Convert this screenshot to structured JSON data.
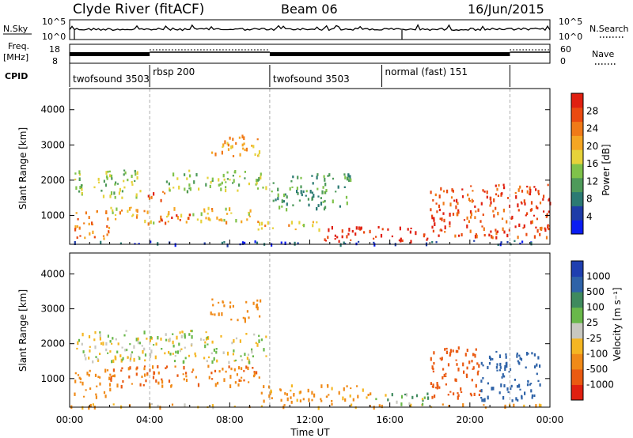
{
  "header": {
    "station": "Clyde River (fitACF)",
    "beam": "Beam 06",
    "date": "16/Jun/2015"
  },
  "strip1": {
    "left_label": "N.Sky",
    "right_label": "N.Search",
    "tick_top_left": "10^5",
    "tick_bottom_left": "10^0",
    "tick_top_right": "10^5",
    "tick_bottom_right": "10^0"
  },
  "strip2": {
    "left_label_1": "Freq.",
    "left_label_2": "[MHz]",
    "tick_top_left": "18",
    "tick_bottom_left": "8",
    "right_label": "Nave",
    "tick_top_right": "60",
    "tick_bottom_right": "0"
  },
  "cpid": {
    "label": "CPID",
    "modes": [
      {
        "name": "twofsound 3503",
        "start_hour": 0.0
      },
      {
        "name": "rbsp 200",
        "start_hour": 4.0
      },
      {
        "name": "twofsound 3503",
        "start_hour": 10.0
      },
      {
        "name": "normal (fast) 151",
        "start_hour": 15.6
      }
    ]
  },
  "power_colorbar": {
    "label": "Power [dB]",
    "ticks": [
      "4",
      "8",
      "12",
      "16",
      "20",
      "24",
      "28"
    ],
    "colors": [
      "#0a1cf2",
      "#1e3ca8",
      "#2b7a73",
      "#4e9a5a",
      "#7fc24a",
      "#e6d23a",
      "#f5a623",
      "#f07a18",
      "#ea4a10",
      "#e01f10"
    ]
  },
  "velocity_colorbar": {
    "label": "Velocity [m s⁻¹]",
    "ticks": [
      "1000",
      "500",
      "100",
      "25",
      "-25",
      "-100",
      "-500",
      "-1000"
    ],
    "colors": [
      "#1f3fb0",
      "#2f63a8",
      "#3f8a5e",
      "#69b84a",
      "#c8c8c0",
      "#f5b622",
      "#f08a18",
      "#ea5a12",
      "#e02010"
    ]
  },
  "chart_data": [
    {
      "type": "heatmap",
      "title": "",
      "xlabel": "",
      "ylabel": "Slant Range [km]",
      "value_label": "Power [dB]",
      "xlim": [
        0,
        24
      ],
      "ylim": [
        180,
        4600
      ],
      "xticks": [
        "00:00",
        "04:00",
        "08:00",
        "12:00",
        "16:00",
        "20:00",
        "00:00"
      ],
      "yticks": [
        "1000",
        "2000",
        "3000",
        "4000"
      ],
      "bands": [
        {
          "x0": 0,
          "x1": 24,
          "y0": 200,
          "y1": 300,
          "value": 4
        },
        {
          "x0": 0.2,
          "x1": 3.6,
          "y0": 1500,
          "y1": 2300,
          "value": 14
        },
        {
          "x0": 3.6,
          "x1": 4.8,
          "y0": 1450,
          "y1": 1750,
          "value": 24
        },
        {
          "x0": 4.8,
          "x1": 9.8,
          "y0": 1700,
          "y1": 2300,
          "value": 14
        },
        {
          "x0": 0.2,
          "x1": 2.0,
          "y0": 330,
          "y1": 1150,
          "value": 22
        },
        {
          "x0": 2.0,
          "x1": 9.0,
          "y0": 800,
          "y1": 1250,
          "value": 18
        },
        {
          "x0": 4.0,
          "x1": 6.0,
          "y0": 800,
          "y1": 1050,
          "value": 26
        },
        {
          "x0": 9.0,
          "x1": 12.5,
          "y0": 600,
          "y1": 850,
          "value": 18
        },
        {
          "x0": 12.5,
          "x1": 18.0,
          "y0": 300,
          "y1": 700,
          "value": 28
        },
        {
          "x0": 18.0,
          "x1": 24,
          "y0": 400,
          "y1": 1900,
          "value": 26
        },
        {
          "x0": 7.0,
          "x1": 9.5,
          "y0": 2700,
          "y1": 3300,
          "value": 20
        },
        {
          "x0": 10.0,
          "x1": 14.0,
          "y0": 1200,
          "y1": 2200,
          "value": 10
        }
      ]
    },
    {
      "type": "heatmap",
      "title": "",
      "xlabel": "Time UT",
      "ylabel": "Slant Range [km]",
      "value_label": "Velocity [m s⁻¹]",
      "xlim": [
        0,
        24
      ],
      "ylim": [
        180,
        4600
      ],
      "xticks": [
        "00:00",
        "04:00",
        "08:00",
        "12:00",
        "16:00",
        "20:00",
        "00:00"
      ],
      "yticks": [
        "1000",
        "2000",
        "3000",
        "4000"
      ],
      "bands": [
        {
          "x0": 0,
          "x1": 24,
          "y0": 200,
          "y1": 300,
          "value": -100
        },
        {
          "x0": 0.2,
          "x1": 9.8,
          "y0": 1500,
          "y1": 2400,
          "value": 0
        },
        {
          "x0": 0.2,
          "x1": 2.0,
          "y0": 500,
          "y1": 1300,
          "value": -300
        },
        {
          "x0": 2.0,
          "x1": 9.5,
          "y0": 800,
          "y1": 1400,
          "value": -500
        },
        {
          "x0": 9.5,
          "x1": 15.0,
          "y0": 350,
          "y1": 850,
          "value": -150
        },
        {
          "x0": 15.0,
          "x1": 18.0,
          "y0": 300,
          "y1": 600,
          "value": 60
        },
        {
          "x0": 18.0,
          "x1": 20.5,
          "y0": 500,
          "y1": 2000,
          "value": -600
        },
        {
          "x0": 20.5,
          "x1": 23.5,
          "y0": 400,
          "y1": 1800,
          "value": 700
        },
        {
          "x0": 7.0,
          "x1": 9.5,
          "y0": 2700,
          "y1": 3300,
          "value": -300
        }
      ]
    }
  ]
}
